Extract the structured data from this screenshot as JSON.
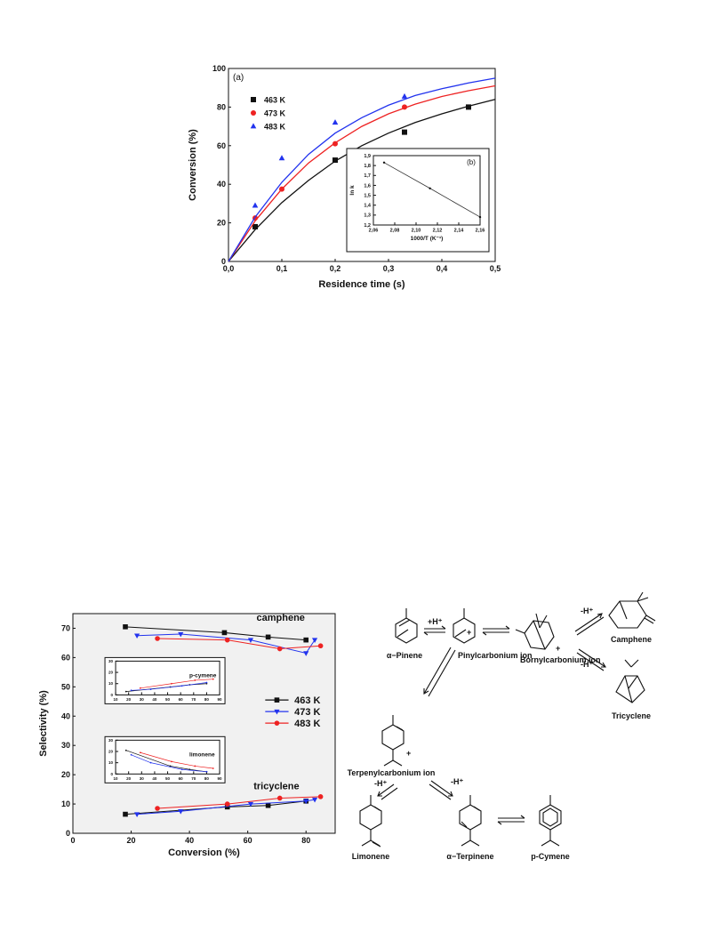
{
  "chart_data": [
    {
      "type": "scatter",
      "title": "(a)",
      "xlabel": "Residence time (s)",
      "ylabel": "Conversion (%)",
      "xlim": [
        0,
        0.5
      ],
      "ylim": [
        0,
        100
      ],
      "xticks": [
        0,
        0.1,
        0.2,
        0.3,
        0.4,
        0.5
      ],
      "xtick_labels": [
        "0,0",
        "0,1",
        "0,2",
        "0,3",
        "0,4",
        "0,5"
      ],
      "yticks": [
        0,
        20,
        40,
        60,
        80,
        100
      ],
      "ytick_labels": [
        "0",
        "20",
        "40",
        "60",
        "80",
        "100"
      ],
      "grid": false,
      "legend_position": "top-left",
      "series": [
        {
          "name": "463 K",
          "color": "#111111",
          "marker": "square",
          "points": [
            [
              0.05,
              18
            ],
            [
              0.2,
              52.5
            ],
            [
              0.33,
              67
            ],
            [
              0.45,
              80
            ]
          ],
          "fit": [
            [
              0,
              0
            ],
            [
              0.05,
              16.5
            ],
            [
              0.1,
              30.5
            ],
            [
              0.15,
              42
            ],
            [
              0.2,
              52
            ],
            [
              0.25,
              60
            ],
            [
              0.3,
              66.5
            ],
            [
              0.35,
              72
            ],
            [
              0.4,
              76.5
            ],
            [
              0.45,
              80.5
            ],
            [
              0.5,
              84
            ]
          ]
        },
        {
          "name": "473 K",
          "color": "#ee2222",
          "marker": "circle",
          "points": [
            [
              0.05,
              22.5
            ],
            [
              0.1,
              37.5
            ],
            [
              0.2,
              61
            ],
            [
              0.33,
              80
            ]
          ],
          "fit": [
            [
              0,
              0
            ],
            [
              0.05,
              21
            ],
            [
              0.1,
              37.5
            ],
            [
              0.15,
              51
            ],
            [
              0.2,
              61.5
            ],
            [
              0.25,
              70
            ],
            [
              0.3,
              76.5
            ],
            [
              0.35,
              81.5
            ],
            [
              0.4,
              85.5
            ],
            [
              0.45,
              88.5
            ],
            [
              0.5,
              91
            ]
          ]
        },
        {
          "name": "483 K",
          "color": "#2233ee",
          "marker": "triangle",
          "points": [
            [
              0.05,
              29
            ],
            [
              0.1,
              53.5
            ],
            [
              0.2,
              72
            ],
            [
              0.33,
              85.5
            ]
          ],
          "fit": [
            [
              0,
              0
            ],
            [
              0.05,
              23
            ],
            [
              0.1,
              41
            ],
            [
              0.15,
              55.5
            ],
            [
              0.2,
              66.5
            ],
            [
              0.25,
              74.5
            ],
            [
              0.3,
              81
            ],
            [
              0.35,
              86
            ],
            [
              0.4,
              89.5
            ],
            [
              0.45,
              92.5
            ],
            [
              0.5,
              95
            ]
          ]
        }
      ],
      "inset": {
        "label": "(b)",
        "xlabel": "1000/T (K⁻¹)",
        "ylabel": "ln k",
        "xlim": [
          2.06,
          2.16
        ],
        "ylim": [
          1.2,
          1.9
        ],
        "xticks": [
          2.06,
          2.08,
          2.1,
          2.12,
          2.14,
          2.16
        ],
        "xtick_labels": [
          "2,06",
          "2,08",
          "2,10",
          "2,12",
          "2,14",
          "2,16"
        ],
        "yticks": [
          1.2,
          1.3,
          1.4,
          1.5,
          1.6,
          1.7,
          1.8,
          1.9
        ],
        "ytick_labels": [
          "1,2",
          "1,3",
          "1,4",
          "1,5",
          "1,6",
          "1,7",
          "1,8",
          "1,9"
        ],
        "points": [
          [
            2.07,
            1.83
          ],
          [
            2.113,
            1.57
          ],
          [
            2.16,
            1.28
          ]
        ]
      }
    },
    {
      "type": "line",
      "xlabel": "Conversion (%)",
      "ylabel": "Selectivity (%)",
      "xlim": [
        0,
        90
      ],
      "ylim": [
        0,
        75
      ],
      "xticks": [
        0,
        20,
        40,
        60,
        80
      ],
      "xtick_labels": [
        "0",
        "20",
        "40",
        "60",
        "80"
      ],
      "yticks": [
        0,
        10,
        20,
        30,
        40,
        50,
        60,
        70
      ],
      "ytick_labels": [
        "0",
        "10",
        "20",
        "30",
        "40",
        "50",
        "60",
        "70"
      ],
      "grid": false,
      "legend_position": "middle-right",
      "annotations": [
        "camphene",
        "tricyclene"
      ],
      "series": [
        {
          "name": "463 K",
          "color": "#111111",
          "marker": "square",
          "camphene": [
            [
              18,
              70.5
            ],
            [
              52,
              68.5
            ],
            [
              67,
              67
            ],
            [
              80,
              66
            ]
          ],
          "tricyclene": [
            [
              18,
              6.5
            ],
            [
              53,
              9
            ],
            [
              67,
              9.5
            ],
            [
              80,
              11
            ]
          ]
        },
        {
          "name": "473 K",
          "color": "#2233ee",
          "marker": "triangle-down",
          "camphene": [
            [
              22,
              67.5
            ],
            [
              37,
              68
            ],
            [
              61,
              66
            ],
            [
              80,
              61.5
            ],
            [
              83,
              66
            ]
          ],
          "tricyclene": [
            [
              22,
              6.5
            ],
            [
              37,
              7.5
            ],
            [
              61,
              10
            ],
            [
              80,
              11
            ],
            [
              83,
              11.5
            ]
          ]
        },
        {
          "name": "483 K",
          "color": "#ee2222",
          "marker": "circle",
          "camphene": [
            [
              29,
              66.5
            ],
            [
              53,
              66
            ],
            [
              71,
              63
            ],
            [
              85,
              64
            ]
          ],
          "tricyclene": [
            [
              29,
              8.5
            ],
            [
              53,
              10
            ],
            [
              71,
              12
            ],
            [
              85,
              12.5
            ]
          ]
        }
      ],
      "insets": [
        {
          "label": "p-cymene",
          "xlim": [
            10,
            90
          ],
          "ylim": [
            0,
            30
          ],
          "xticks": [
            10,
            20,
            30,
            40,
            50,
            60,
            70,
            80,
            90
          ],
          "xtick_labels": [
            "10",
            "20",
            "30",
            "40",
            "50",
            "60",
            "70",
            "80",
            "90"
          ],
          "yticks": [
            0,
            10,
            20,
            30
          ],
          "ytick_labels": [
            "0",
            "10",
            "20",
            "30"
          ],
          "series": [
            {
              "color": "#111111",
              "points": [
                [
                  18,
                  3
                ],
                [
                  52,
                  7
                ],
                [
                  67,
                  9
                ],
                [
                  80,
                  10
                ]
              ]
            },
            {
              "color": "#2233ee",
              "points": [
                [
                  22,
                  4
                ],
                [
                  37,
                  5
                ],
                [
                  61,
                  8
                ],
                [
                  80,
                  11
                ]
              ]
            },
            {
              "color": "#ee2222",
              "points": [
                [
                  29,
                  6
                ],
                [
                  53,
                  10
                ],
                [
                  71,
                  13
                ],
                [
                  85,
                  14
                ]
              ]
            }
          ]
        },
        {
          "label": "limonene",
          "xlim": [
            10,
            90
          ],
          "ylim": [
            0,
            30
          ],
          "xticks": [
            10,
            20,
            30,
            40,
            50,
            60,
            70,
            80,
            90
          ],
          "xtick_labels": [
            "10",
            "20",
            "30",
            "40",
            "50",
            "60",
            "70",
            "80",
            "90"
          ],
          "yticks": [
            0,
            10,
            20,
            30
          ],
          "ytick_labels": [
            "0",
            "10",
            "20",
            "30"
          ],
          "series": [
            {
              "color": "#111111",
              "points": [
                [
                  18,
                  21
                ],
                [
                  52,
                  7
                ],
                [
                  67,
                  4
                ],
                [
                  80,
                  2
                ]
              ]
            },
            {
              "color": "#2233ee",
              "points": [
                [
                  22,
                  17
                ],
                [
                  37,
                  10
                ],
                [
                  61,
                  4
                ],
                [
                  80,
                  2
                ]
              ]
            },
            {
              "color": "#ee2222",
              "points": [
                [
                  29,
                  19
                ],
                [
                  53,
                  11
                ],
                [
                  71,
                  7
                ],
                [
                  85,
                  5
                ]
              ]
            }
          ]
        }
      ]
    }
  ],
  "scheme": {
    "compounds": [
      "α−Pinene",
      "Pinylcarbonium ion",
      "Bornylcarbonium ion",
      "Camphene",
      "Tricyclene",
      "Terpenylcarbonium ion",
      "Limonene",
      "α−Terpinene",
      "p-Cymene"
    ],
    "step_labels": [
      "+H⁺",
      "-H⁺",
      "-H⁺",
      "-H⁺",
      "-H⁺"
    ],
    "charge": "+"
  }
}
